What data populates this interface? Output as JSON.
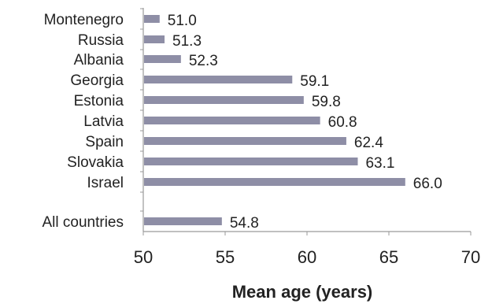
{
  "chart_data": {
    "type": "bar",
    "orientation": "horizontal",
    "categories": [
      "Montenegro",
      "Russia",
      "Albania",
      "Georgia",
      "Estonia",
      "Latvia",
      "Spain",
      "Slovakia",
      "Israel",
      "All countries"
    ],
    "values": [
      51.0,
      51.3,
      52.3,
      59.1,
      59.8,
      60.8,
      62.4,
      63.1,
      66.0,
      54.8
    ],
    "value_labels": [
      "51.0",
      "51.3",
      "52.3",
      "59.1",
      "59.8",
      "60.8",
      "62.4",
      "63.1",
      "66.0",
      "54.8"
    ],
    "xlabel": "Mean age (years)",
    "ylabel": "",
    "xlim": [
      50,
      70
    ],
    "xticks": [
      50,
      55,
      60,
      65,
      70
    ],
    "grid": false,
    "bar_color": "#8e8ea6",
    "axis_color": "#9a9a9a"
  }
}
